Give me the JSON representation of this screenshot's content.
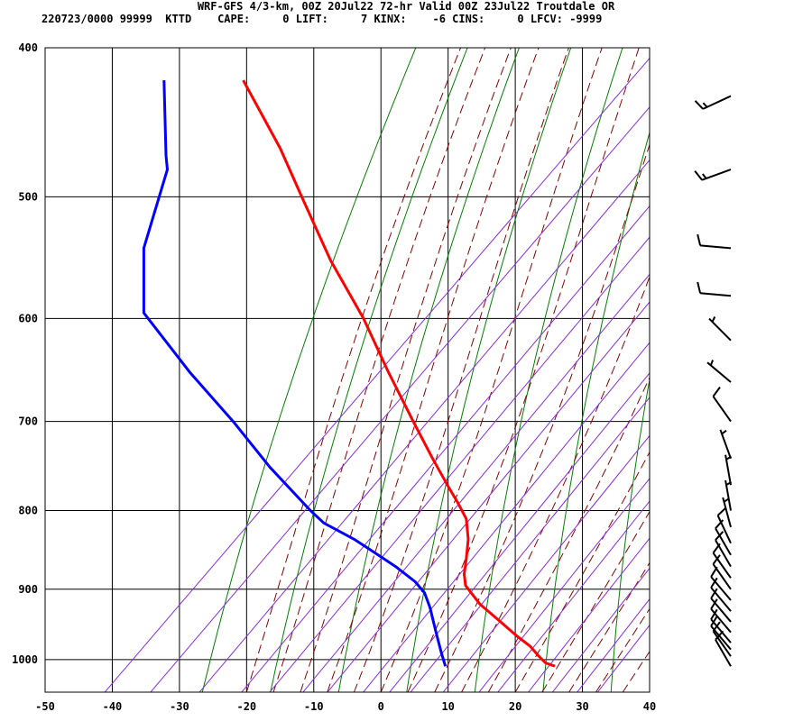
{
  "header": {
    "title": "WRF-GFS 4/3-km, 00Z 20Jul22 72-hr Valid 00Z 23Jul22 Troutdale OR",
    "subtitle": "220723/0000 99999  KTTD    CAPE:     0 LIFT:     7 KINX:    -6 CINS:     0 LFCV: -9999"
  },
  "colors": {
    "grid": "#000000",
    "dry_adiabat": "#008000",
    "moist_adiabat": "#8a0000",
    "mixing_ratio": "#8a2be2",
    "temperature": "#ff0000",
    "dewpoint": "#0000ff",
    "wind_barb": "#000000"
  },
  "chart_data": {
    "type": "line",
    "chart_kind": "skew-T log-p sounding",
    "xlabel": "",
    "ylabel": "",
    "xlim": [
      -50,
      40
    ],
    "ylim": [
      1050,
      400
    ],
    "y_scale": "log (pressure, decreasing upward)",
    "grid": true,
    "x_ticks": [
      "-50",
      "-40",
      "-30",
      "-20",
      "-10",
      "0",
      "10",
      "20",
      "30",
      "40"
    ],
    "y_ticks": [
      "400",
      "500",
      "600",
      "700",
      "800",
      "900",
      "1000"
    ],
    "series": [
      {
        "key": "temperature",
        "points": [
          {
            "p": 1010,
            "t": 25.9
          },
          {
            "p": 1005,
            "t": 24.5
          },
          {
            "p": 995,
            "t": 23.5
          },
          {
            "p": 980,
            "t": 22.2
          },
          {
            "p": 965,
            "t": 20.2
          },
          {
            "p": 945,
            "t": 17.8
          },
          {
            "p": 920,
            "t": 14.7
          },
          {
            "p": 895,
            "t": 12.6
          },
          {
            "p": 880,
            "t": 12.4
          },
          {
            "p": 860,
            "t": 12.7
          },
          {
            "p": 835,
            "t": 13.0
          },
          {
            "p": 810,
            "t": 12.7
          },
          {
            "p": 790,
            "t": 11.4
          },
          {
            "p": 770,
            "t": 9.9
          },
          {
            "p": 740,
            "t": 7.7
          },
          {
            "p": 700,
            "t": 4.8
          },
          {
            "p": 650,
            "t": 1.1
          },
          {
            "p": 600,
            "t": -2.6
          },
          {
            "p": 550,
            "t": -7.5
          },
          {
            "p": 500,
            "t": -11.8
          },
          {
            "p": 465,
            "t": -15.0
          },
          {
            "p": 420,
            "t": -20.5
          }
        ]
      },
      {
        "key": "dewpoint",
        "points": [
          {
            "p": 1010,
            "t": 9.6
          },
          {
            "p": 990,
            "t": 9.0
          },
          {
            "p": 960,
            "t": 8.2
          },
          {
            "p": 925,
            "t": 7.3
          },
          {
            "p": 905,
            "t": 6.5
          },
          {
            "p": 890,
            "t": 5.1
          },
          {
            "p": 870,
            "t": 2.2
          },
          {
            "p": 850,
            "t": -1.3
          },
          {
            "p": 835,
            "t": -4.0
          },
          {
            "p": 815,
            "t": -8.5
          },
          {
            "p": 800,
            "t": -10.5
          },
          {
            "p": 750,
            "t": -16.5
          },
          {
            "p": 700,
            "t": -22.0
          },
          {
            "p": 650,
            "t": -28.5
          },
          {
            "p": 595,
            "t": -35.3
          },
          {
            "p": 540,
            "t": -35.3
          },
          {
            "p": 480,
            "t": -31.8
          },
          {
            "p": 470,
            "t": -32.0
          },
          {
            "p": 420,
            "t": -32.3
          }
        ]
      }
    ],
    "wind_barbs": [
      {
        "p": 1010,
        "dir": 330,
        "spd": 10
      },
      {
        "p": 995,
        "dir": 325,
        "spd": 10
      },
      {
        "p": 985,
        "dir": 320,
        "spd": 10
      },
      {
        "p": 975,
        "dir": 320,
        "spd": 10
      },
      {
        "p": 960,
        "dir": 320,
        "spd": 10
      },
      {
        "p": 945,
        "dir": 320,
        "spd": 10
      },
      {
        "p": 930,
        "dir": 320,
        "spd": 10
      },
      {
        "p": 915,
        "dir": 320,
        "spd": 10
      },
      {
        "p": 900,
        "dir": 325,
        "spd": 10
      },
      {
        "p": 885,
        "dir": 325,
        "spd": 10
      },
      {
        "p": 870,
        "dir": 330,
        "spd": 10
      },
      {
        "p": 855,
        "dir": 330,
        "spd": 10
      },
      {
        "p": 840,
        "dir": 335,
        "spd": 10
      },
      {
        "p": 820,
        "dir": 345,
        "spd": 5
      },
      {
        "p": 800,
        "dir": 350,
        "spd": 5
      },
      {
        "p": 770,
        "dir": 350,
        "spd": 5
      },
      {
        "p": 740,
        "dir": 340,
        "spd": 5
      },
      {
        "p": 700,
        "dir": 325,
        "spd": 10
      },
      {
        "p": 660,
        "dir": 310,
        "spd": 5
      },
      {
        "p": 620,
        "dir": 315,
        "spd": 5
      },
      {
        "p": 580,
        "dir": 275,
        "spd": 10
      },
      {
        "p": 540,
        "dir": 275,
        "spd": 10
      },
      {
        "p": 480,
        "dir": 250,
        "spd": 15
      },
      {
        "p": 430,
        "dir": 245,
        "spd": 15
      }
    ]
  }
}
